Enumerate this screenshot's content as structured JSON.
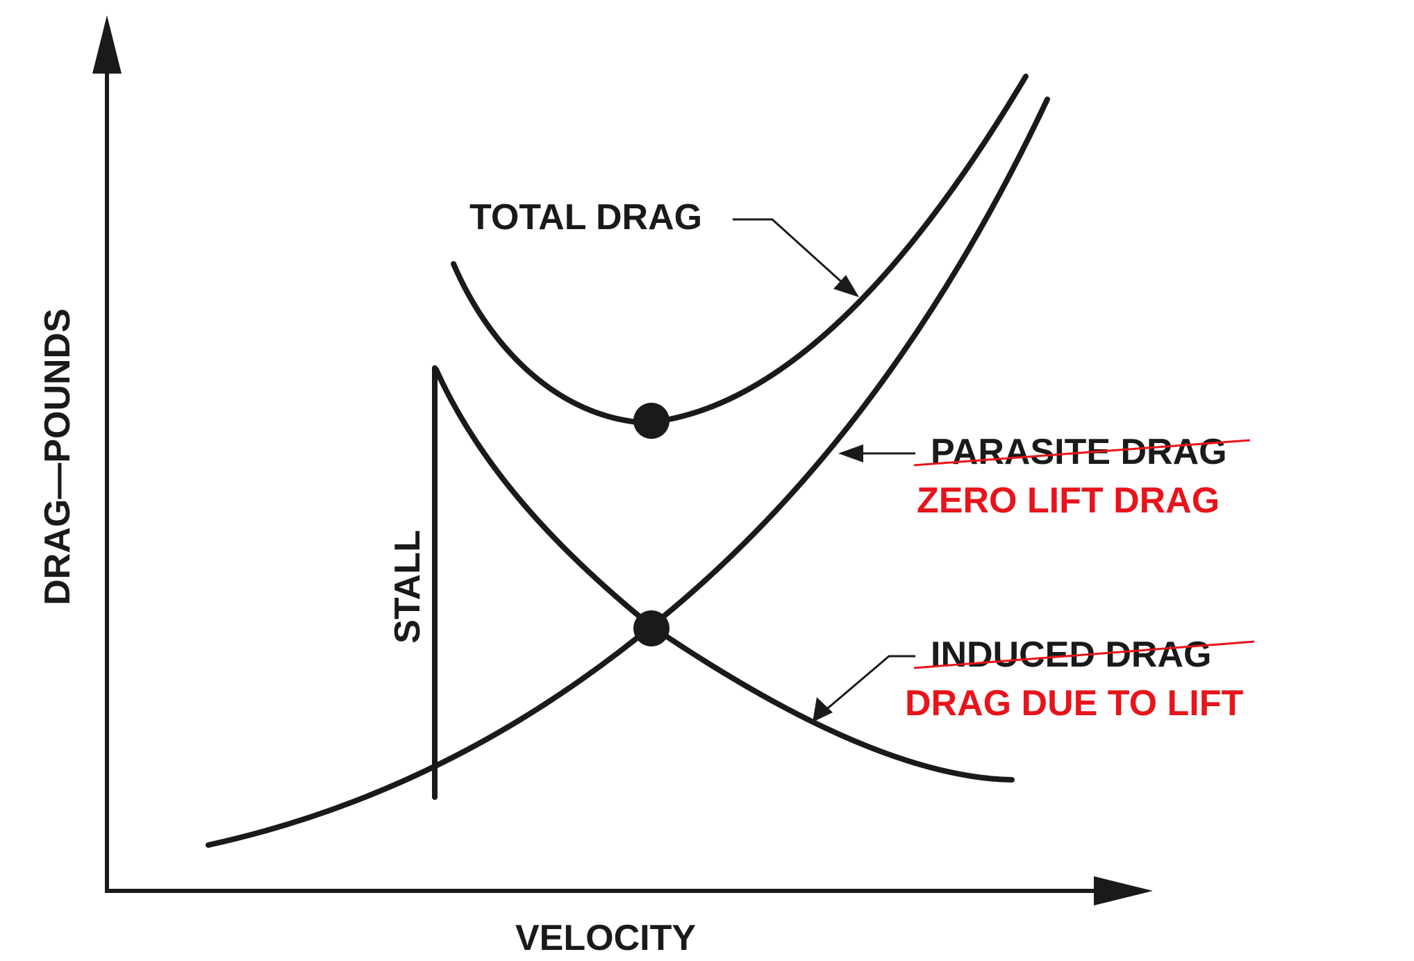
{
  "chart_data": {
    "type": "line",
    "title": "",
    "xlabel": "VELOCITY",
    "ylabel": "DRAG—POUNDS",
    "xlim": [
      0,
      100
    ],
    "ylim": [
      0,
      100
    ],
    "grid": false,
    "legend": "none",
    "colors": {
      "ink": "#1a1a1a",
      "correction": "#e8141b"
    },
    "series": [
      {
        "name": "TOTAL DRAG",
        "points": [
          [
            34,
            76
          ],
          [
            40,
            62
          ],
          [
            48,
            55
          ],
          [
            52,
            54
          ],
          [
            56,
            55
          ],
          [
            64,
            61
          ],
          [
            72,
            72
          ],
          [
            80,
            86
          ],
          [
            87,
            100
          ]
        ]
      },
      {
        "name": "PARASITE DRAG",
        "replacement_name": "ZERO LIFT DRAG",
        "points": [
          [
            9,
            5
          ],
          [
            20,
            10
          ],
          [
            30,
            16
          ],
          [
            40,
            24
          ],
          [
            52,
            32
          ],
          [
            60,
            40
          ],
          [
            70,
            52
          ],
          [
            80,
            69
          ],
          [
            89,
            98
          ]
        ]
      },
      {
        "name": "INDUCED DRAG",
        "replacement_name": "DRAG DUE TO LIFT",
        "points": [
          [
            32,
            64
          ],
          [
            36,
            56
          ],
          [
            42,
            45
          ],
          [
            48,
            38
          ],
          [
            52,
            32
          ],
          [
            60,
            26
          ],
          [
            70,
            19
          ],
          [
            80,
            14
          ],
          [
            86,
            13
          ]
        ]
      }
    ],
    "markers": [
      {
        "name": "minimum total drag",
        "x": 52,
        "y": 54
      },
      {
        "name": "induced equals parasite",
        "x": 52,
        "y": 32
      }
    ],
    "annotations": [
      {
        "text": "STALL",
        "x": 32,
        "y_range": [
          11,
          64
        ],
        "orientation": "vertical"
      }
    ]
  }
}
